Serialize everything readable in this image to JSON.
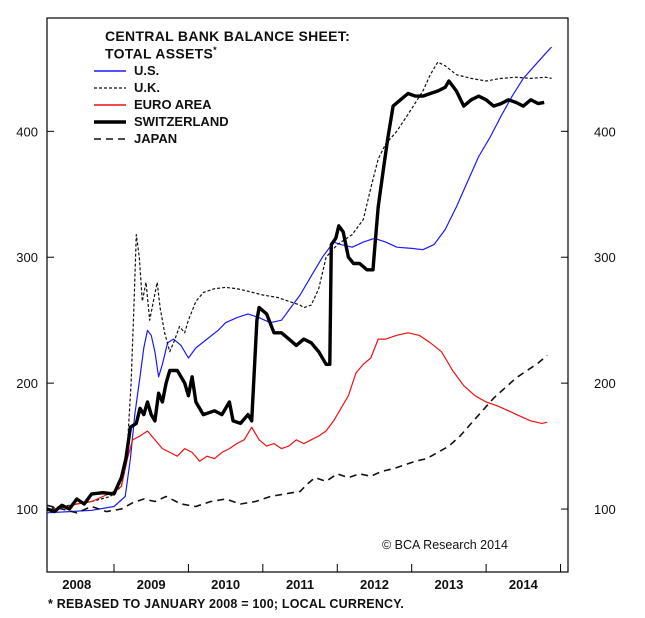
{
  "chart_data": {
    "type": "line",
    "title": "CENTRAL BANK BALANCE SHEET:",
    "subtitle": "TOTAL ASSETS",
    "title_marker": "*",
    "footnote": "* REBASED TO JANUARY 2008 = 100; LOCAL CURRENCY.",
    "credit": "© BCA Research 2014",
    "x_ticks": [
      "2008",
      "2009",
      "2010",
      "2011",
      "2012",
      "2013",
      "2014"
    ],
    "xlim": [
      2007.6,
      2014.6
    ],
    "ylim": [
      50,
      490
    ],
    "y_ticks": [
      100,
      200,
      300,
      400
    ],
    "y_tick_labels": [
      "100",
      "200",
      "300",
      "400"
    ],
    "grid": false,
    "legend_position": "top-left",
    "series": [
      {
        "name": "U.S.",
        "color": "#1a1aff",
        "style": "solid",
        "width": 1.2,
        "points": [
          [
            2007.6,
            97
          ],
          [
            2007.9,
            98
          ],
          [
            2008.2,
            99
          ],
          [
            2008.5,
            102
          ],
          [
            2008.65,
            110
          ],
          [
            2008.72,
            140
          ],
          [
            2008.78,
            175
          ],
          [
            2008.85,
            205
          ],
          [
            2008.9,
            228
          ],
          [
            2008.95,
            242
          ],
          [
            2009.0,
            238
          ],
          [
            2009.05,
            225
          ],
          [
            2009.1,
            205
          ],
          [
            2009.15,
            215
          ],
          [
            2009.22,
            232
          ],
          [
            2009.3,
            235
          ],
          [
            2009.4,
            230
          ],
          [
            2009.5,
            220
          ],
          [
            2009.6,
            228
          ],
          [
            2009.75,
            235
          ],
          [
            2009.9,
            242
          ],
          [
            2010.0,
            248
          ],
          [
            2010.15,
            252
          ],
          [
            2010.3,
            255
          ],
          [
            2010.45,
            252
          ],
          [
            2010.6,
            248
          ],
          [
            2010.75,
            250
          ],
          [
            2010.85,
            258
          ],
          [
            2011.0,
            270
          ],
          [
            2011.15,
            285
          ],
          [
            2011.3,
            300
          ],
          [
            2011.45,
            312
          ],
          [
            2011.55,
            310
          ],
          [
            2011.7,
            308
          ],
          [
            2011.85,
            312
          ],
          [
            2012.0,
            315
          ],
          [
            2012.15,
            312
          ],
          [
            2012.3,
            308
          ],
          [
            2012.5,
            307
          ],
          [
            2012.65,
            306
          ],
          [
            2012.8,
            310
          ],
          [
            2012.95,
            322
          ],
          [
            2013.1,
            340
          ],
          [
            2013.25,
            360
          ],
          [
            2013.4,
            380
          ],
          [
            2013.55,
            395
          ],
          [
            2013.7,
            412
          ],
          [
            2013.85,
            428
          ],
          [
            2014.0,
            442
          ],
          [
            2014.15,
            452
          ],
          [
            2014.3,
            462
          ],
          [
            2014.38,
            467
          ]
        ]
      },
      {
        "name": "U.K.",
        "color": "#111111",
        "style": "dashed-fine",
        "width": 1.2,
        "points": [
          [
            2007.6,
            100
          ],
          [
            2007.8,
            102
          ],
          [
            2008.0,
            104
          ],
          [
            2008.2,
            106
          ],
          [
            2008.45,
            110
          ],
          [
            2008.6,
            118
          ],
          [
            2008.68,
            150
          ],
          [
            2008.73,
            200
          ],
          [
            2008.77,
            265
          ],
          [
            2008.8,
            318
          ],
          [
            2008.84,
            300
          ],
          [
            2008.88,
            265
          ],
          [
            2008.93,
            280
          ],
          [
            2008.98,
            250
          ],
          [
            2009.03,
            265
          ],
          [
            2009.08,
            280
          ],
          [
            2009.12,
            260
          ],
          [
            2009.18,
            240
          ],
          [
            2009.25,
            225
          ],
          [
            2009.32,
            235
          ],
          [
            2009.38,
            245
          ],
          [
            2009.45,
            240
          ],
          [
            2009.5,
            250
          ],
          [
            2009.6,
            265
          ],
          [
            2009.7,
            272
          ],
          [
            2009.85,
            275
          ],
          [
            2010.0,
            276
          ],
          [
            2010.15,
            275
          ],
          [
            2010.3,
            273
          ],
          [
            2010.5,
            270
          ],
          [
            2010.7,
            268
          ],
          [
            2010.9,
            264
          ],
          [
            2011.0,
            262
          ],
          [
            2011.05,
            260
          ],
          [
            2011.15,
            262
          ],
          [
            2011.25,
            275
          ],
          [
            2011.35,
            300
          ],
          [
            2011.5,
            310
          ],
          [
            2011.7,
            318
          ],
          [
            2011.85,
            330
          ],
          [
            2011.95,
            355
          ],
          [
            2012.05,
            378
          ],
          [
            2012.15,
            390
          ],
          [
            2012.3,
            400
          ],
          [
            2012.5,
            418
          ],
          [
            2012.65,
            432
          ],
          [
            2012.75,
            445
          ],
          [
            2012.85,
            455
          ],
          [
            2012.95,
            452
          ],
          [
            2013.1,
            445
          ],
          [
            2013.3,
            442
          ],
          [
            2013.5,
            440
          ],
          [
            2013.7,
            442
          ],
          [
            2013.9,
            443
          ],
          [
            2014.1,
            442
          ],
          [
            2014.3,
            443
          ],
          [
            2014.38,
            442
          ]
        ]
      },
      {
        "name": "EURO AREA",
        "color": "#ee1111",
        "style": "solid",
        "width": 1.2,
        "points": [
          [
            2007.6,
            99
          ],
          [
            2007.8,
            101
          ],
          [
            2008.0,
            104
          ],
          [
            2008.2,
            106
          ],
          [
            2008.35,
            110
          ],
          [
            2008.5,
            114
          ],
          [
            2008.6,
            118
          ],
          [
            2008.68,
            140
          ],
          [
            2008.75,
            155
          ],
          [
            2008.85,
            158
          ],
          [
            2008.95,
            162
          ],
          [
            2009.05,
            155
          ],
          [
            2009.15,
            148
          ],
          [
            2009.25,
            145
          ],
          [
            2009.35,
            142
          ],
          [
            2009.45,
            148
          ],
          [
            2009.55,
            145
          ],
          [
            2009.65,
            138
          ],
          [
            2009.75,
            142
          ],
          [
            2009.85,
            140
          ],
          [
            2009.95,
            145
          ],
          [
            2010.05,
            148
          ],
          [
            2010.15,
            152
          ],
          [
            2010.25,
            155
          ],
          [
            2010.35,
            165
          ],
          [
            2010.45,
            155
          ],
          [
            2010.55,
            150
          ],
          [
            2010.65,
            152
          ],
          [
            2010.75,
            148
          ],
          [
            2010.85,
            150
          ],
          [
            2010.95,
            155
          ],
          [
            2011.05,
            152
          ],
          [
            2011.15,
            155
          ],
          [
            2011.25,
            158
          ],
          [
            2011.35,
            162
          ],
          [
            2011.45,
            170
          ],
          [
            2011.55,
            180
          ],
          [
            2011.65,
            190
          ],
          [
            2011.75,
            208
          ],
          [
            2011.85,
            215
          ],
          [
            2011.95,
            220
          ],
          [
            2012.05,
            235
          ],
          [
            2012.15,
            235
          ],
          [
            2012.3,
            238
          ],
          [
            2012.45,
            240
          ],
          [
            2012.6,
            238
          ],
          [
            2012.75,
            232
          ],
          [
            2012.9,
            225
          ],
          [
            2013.05,
            210
          ],
          [
            2013.2,
            198
          ],
          [
            2013.35,
            190
          ],
          [
            2013.5,
            185
          ],
          [
            2013.65,
            182
          ],
          [
            2013.8,
            178
          ],
          [
            2013.95,
            174
          ],
          [
            2014.1,
            170
          ],
          [
            2014.25,
            168
          ],
          [
            2014.32,
            169
          ]
        ]
      },
      {
        "name": "SWITZERLAND",
        "color": "#000000",
        "style": "solid",
        "width": 3.4,
        "points": [
          [
            2007.6,
            100
          ],
          [
            2007.7,
            98
          ],
          [
            2007.8,
            103
          ],
          [
            2007.9,
            100
          ],
          [
            2008.0,
            108
          ],
          [
            2008.1,
            104
          ],
          [
            2008.2,
            112
          ],
          [
            2008.35,
            113
          ],
          [
            2008.5,
            112
          ],
          [
            2008.6,
            125
          ],
          [
            2008.66,
            140
          ],
          [
            2008.72,
            165
          ],
          [
            2008.8,
            168
          ],
          [
            2008.85,
            180
          ],
          [
            2008.9,
            175
          ],
          [
            2008.95,
            185
          ],
          [
            2009.0,
            175
          ],
          [
            2009.05,
            170
          ],
          [
            2009.1,
            192
          ],
          [
            2009.15,
            185
          ],
          [
            2009.2,
            200
          ],
          [
            2009.25,
            210
          ],
          [
            2009.35,
            210
          ],
          [
            2009.45,
            200
          ],
          [
            2009.5,
            190
          ],
          [
            2009.55,
            205
          ],
          [
            2009.6,
            185
          ],
          [
            2009.7,
            175
          ],
          [
            2009.85,
            178
          ],
          [
            2009.95,
            175
          ],
          [
            2010.05,
            185
          ],
          [
            2010.1,
            170
          ],
          [
            2010.2,
            168
          ],
          [
            2010.3,
            175
          ],
          [
            2010.35,
            170
          ],
          [
            2010.42,
            250
          ],
          [
            2010.45,
            260
          ],
          [
            2010.55,
            255
          ],
          [
            2010.65,
            240
          ],
          [
            2010.75,
            240
          ],
          [
            2010.85,
            235
          ],
          [
            2010.95,
            230
          ],
          [
            2011.05,
            235
          ],
          [
            2011.15,
            232
          ],
          [
            2011.25,
            225
          ],
          [
            2011.35,
            215
          ],
          [
            2011.4,
            215
          ],
          [
            2011.42,
            310
          ],
          [
            2011.48,
            315
          ],
          [
            2011.52,
            325
          ],
          [
            2011.58,
            320
          ],
          [
            2011.65,
            300
          ],
          [
            2011.72,
            295
          ],
          [
            2011.8,
            295
          ],
          [
            2011.9,
            290
          ],
          [
            2011.98,
            290
          ],
          [
            2012.0,
            305
          ],
          [
            2012.05,
            340
          ],
          [
            2012.12,
            370
          ],
          [
            2012.18,
            395
          ],
          [
            2012.25,
            420
          ],
          [
            2012.35,
            425
          ],
          [
            2012.45,
            430
          ],
          [
            2012.55,
            428
          ],
          [
            2012.65,
            428
          ],
          [
            2012.75,
            430
          ],
          [
            2012.85,
            432
          ],
          [
            2012.95,
            435
          ],
          [
            2013.0,
            440
          ],
          [
            2013.1,
            432
          ],
          [
            2013.2,
            420
          ],
          [
            2013.3,
            425
          ],
          [
            2013.4,
            428
          ],
          [
            2013.5,
            425
          ],
          [
            2013.6,
            420
          ],
          [
            2013.7,
            422
          ],
          [
            2013.8,
            425
          ],
          [
            2013.9,
            423
          ],
          [
            2014.0,
            420
          ],
          [
            2014.1,
            425
          ],
          [
            2014.2,
            422
          ],
          [
            2014.28,
            423
          ]
        ]
      },
      {
        "name": "JAPAN",
        "color": "#111111",
        "style": "dashed",
        "width": 1.6,
        "points": [
          [
            2007.6,
            103
          ],
          [
            2007.8,
            100
          ],
          [
            2008.0,
            97
          ],
          [
            2008.2,
            102
          ],
          [
            2008.4,
            98
          ],
          [
            2008.6,
            100
          ],
          [
            2008.75,
            105
          ],
          [
            2008.9,
            108
          ],
          [
            2009.05,
            106
          ],
          [
            2009.2,
            110
          ],
          [
            2009.4,
            104
          ],
          [
            2009.6,
            102
          ],
          [
            2009.8,
            106
          ],
          [
            2010.0,
            108
          ],
          [
            2010.2,
            104
          ],
          [
            2010.4,
            106
          ],
          [
            2010.6,
            110
          ],
          [
            2010.8,
            112
          ],
          [
            2011.0,
            114
          ],
          [
            2011.1,
            120
          ],
          [
            2011.2,
            125
          ],
          [
            2011.35,
            122
          ],
          [
            2011.5,
            128
          ],
          [
            2011.65,
            125
          ],
          [
            2011.8,
            128
          ],
          [
            2011.95,
            126
          ],
          [
            2012.1,
            130
          ],
          [
            2012.25,
            132
          ],
          [
            2012.4,
            135
          ],
          [
            2012.55,
            138
          ],
          [
            2012.7,
            140
          ],
          [
            2012.85,
            145
          ],
          [
            2013.0,
            150
          ],
          [
            2013.15,
            158
          ],
          [
            2013.3,
            168
          ],
          [
            2013.45,
            178
          ],
          [
            2013.6,
            188
          ],
          [
            2013.75,
            196
          ],
          [
            2013.9,
            204
          ],
          [
            2014.05,
            210
          ],
          [
            2014.2,
            216
          ],
          [
            2014.32,
            222
          ]
        ]
      }
    ]
  }
}
